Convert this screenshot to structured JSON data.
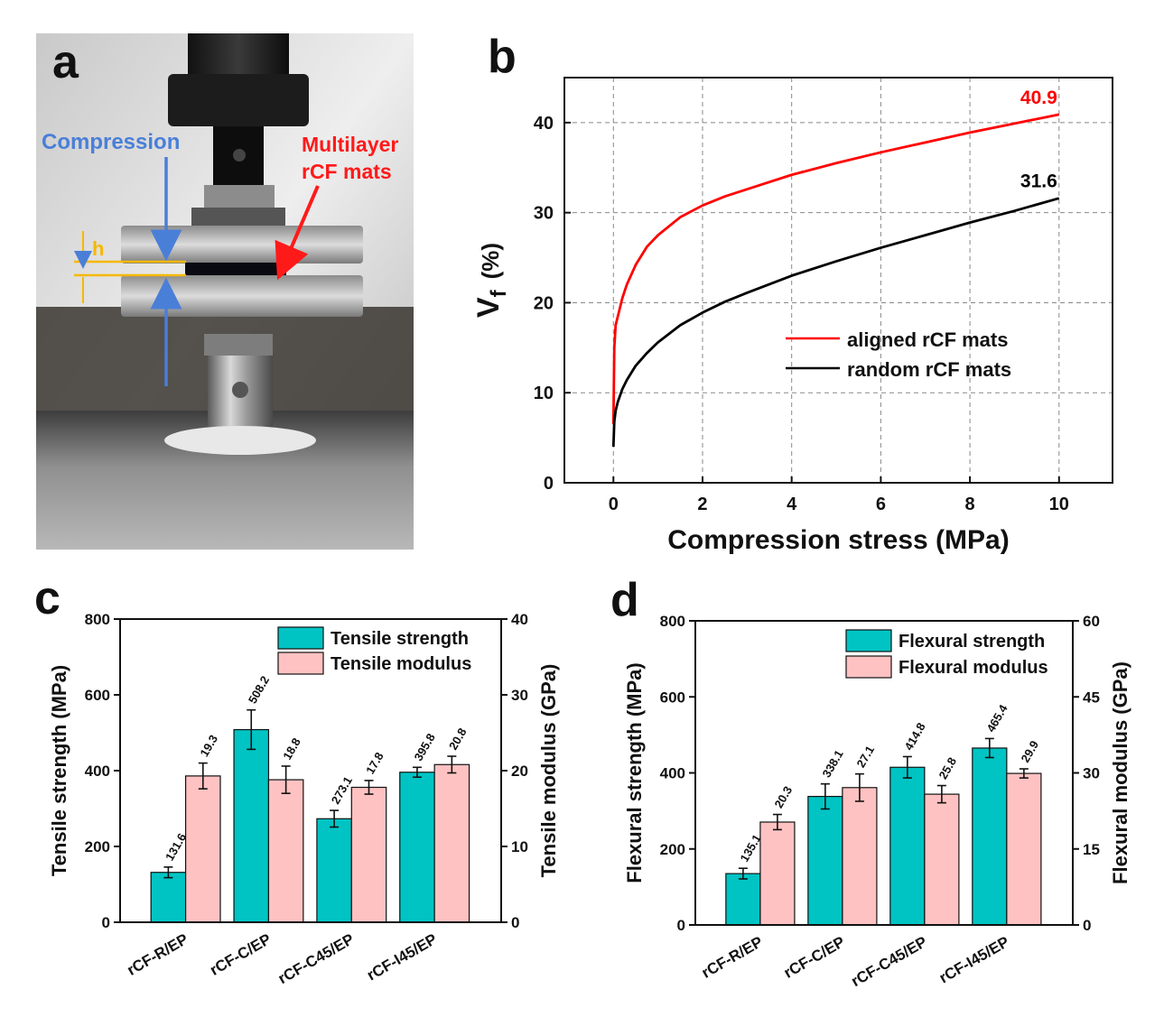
{
  "panels": {
    "a": "a",
    "b": "b",
    "c": "c",
    "d": "d"
  },
  "photo": {
    "label_compression": "Compression",
    "label_mats_line1": "Multilayer",
    "label_mats_line2": "rCF mats",
    "label_h": "h",
    "colors": {
      "compression": "#4a7fd8",
      "mats": "#ff1a1a",
      "h": "#f5b800"
    }
  },
  "chart_data": [
    {
      "panel": "b",
      "type": "line",
      "xlabel": "Compression stress (MPa)",
      "ylabel_main": "V",
      "ylabel_sub": "f",
      "ylabel_unit": "(%)",
      "xlim": [
        -1.1,
        11.2
      ],
      "ylim": [
        0,
        45
      ],
      "xticks": [
        0,
        2,
        4,
        6,
        8,
        10
      ],
      "yticks": [
        0,
        10,
        20,
        30,
        40
      ],
      "grid": "dashed",
      "legend_position": "lower-right",
      "series": [
        {
          "name": "aligned rCF mats",
          "color": "#ff0000",
          "end_label": "40.9",
          "x": [
            0,
            0.02,
            0.05,
            0.1,
            0.2,
            0.3,
            0.5,
            0.75,
            1,
            1.5,
            2,
            2.5,
            3,
            4,
            5,
            6,
            7,
            8,
            9,
            10
          ],
          "y": [
            6.5,
            15.0,
            17.5,
            18.5,
            20.5,
            22.0,
            24.2,
            26.2,
            27.5,
            29.5,
            30.8,
            31.8,
            32.6,
            34.2,
            35.5,
            36.7,
            37.8,
            38.9,
            39.9,
            40.9
          ]
        },
        {
          "name": "random rCF mats",
          "color": "#000000",
          "end_label": "31.6",
          "x": [
            0,
            0.02,
            0.05,
            0.1,
            0.2,
            0.3,
            0.5,
            0.75,
            1,
            1.5,
            2,
            2.5,
            3,
            4,
            5,
            6,
            7,
            8,
            9,
            10
          ],
          "y": [
            4.0,
            6.8,
            8.0,
            9.0,
            10.4,
            11.4,
            13.0,
            14.4,
            15.6,
            17.5,
            18.9,
            20.1,
            21.1,
            23.0,
            24.6,
            26.1,
            27.5,
            28.9,
            30.2,
            31.6
          ]
        }
      ]
    },
    {
      "panel": "c",
      "type": "bar",
      "categories": [
        "rCF-R/EP",
        "rCF-C/EP",
        "rCF-C45/EP",
        "rCF-I45/EP"
      ],
      "ylabel_left": "Tensile strength (MPa)",
      "ylabel_right": "Tensile modulus (GPa)",
      "ylim_left": [
        0,
        800
      ],
      "ylim_right": [
        0,
        40
      ],
      "yticks_left": [
        0,
        200,
        400,
        600,
        800
      ],
      "yticks_right": [
        0,
        10,
        20,
        30,
        40
      ],
      "legend_position": "top-right",
      "series": [
        {
          "name": "Tensile strength",
          "axis": "left",
          "color": "#00c4c4",
          "values": [
            131.6,
            508.2,
            273.1,
            395.8
          ],
          "labels": [
            "131.6",
            "508.2",
            "273.1",
            "395.8"
          ],
          "errors": [
            14,
            52,
            22,
            13
          ]
        },
        {
          "name": "Tensile modulus",
          "axis": "right",
          "color": "#ffc2c2",
          "values": [
            19.3,
            18.8,
            17.8,
            20.8
          ],
          "labels": [
            "19.3",
            "18.8",
            "17.8",
            "20.8"
          ],
          "errors": [
            1.7,
            1.8,
            0.9,
            1.1
          ]
        }
      ]
    },
    {
      "panel": "d",
      "type": "bar",
      "categories": [
        "rCF-R/EP",
        "rCF-C/EP",
        "rCF-C45/EP",
        "rCF-I45/EP"
      ],
      "ylabel_left": "Flexural strength (MPa)",
      "ylabel_right": "Flexural modulus (GPa)",
      "ylim_left": [
        0,
        800
      ],
      "ylim_right": [
        0,
        60
      ],
      "yticks_left": [
        0,
        200,
        400,
        600,
        800
      ],
      "yticks_right": [
        0,
        15,
        30,
        45,
        60
      ],
      "legend_position": "top-right",
      "series": [
        {
          "name": "Flexural strength",
          "axis": "left",
          "color": "#00c4c4",
          "values": [
            135.1,
            338.1,
            414.8,
            465.4
          ],
          "labels": [
            "135.1",
            "338.1",
            "414.8",
            "465.4"
          ],
          "errors": [
            14,
            33,
            28,
            25
          ]
        },
        {
          "name": "Flexural modulus",
          "axis": "right",
          "color": "#ffc2c2",
          "values": [
            20.3,
            27.1,
            25.8,
            29.9
          ],
          "labels": [
            "20.3",
            "27.1",
            "25.8",
            "29.9"
          ],
          "errors": [
            1.5,
            2.7,
            1.7,
            0.9
          ]
        }
      ]
    }
  ]
}
